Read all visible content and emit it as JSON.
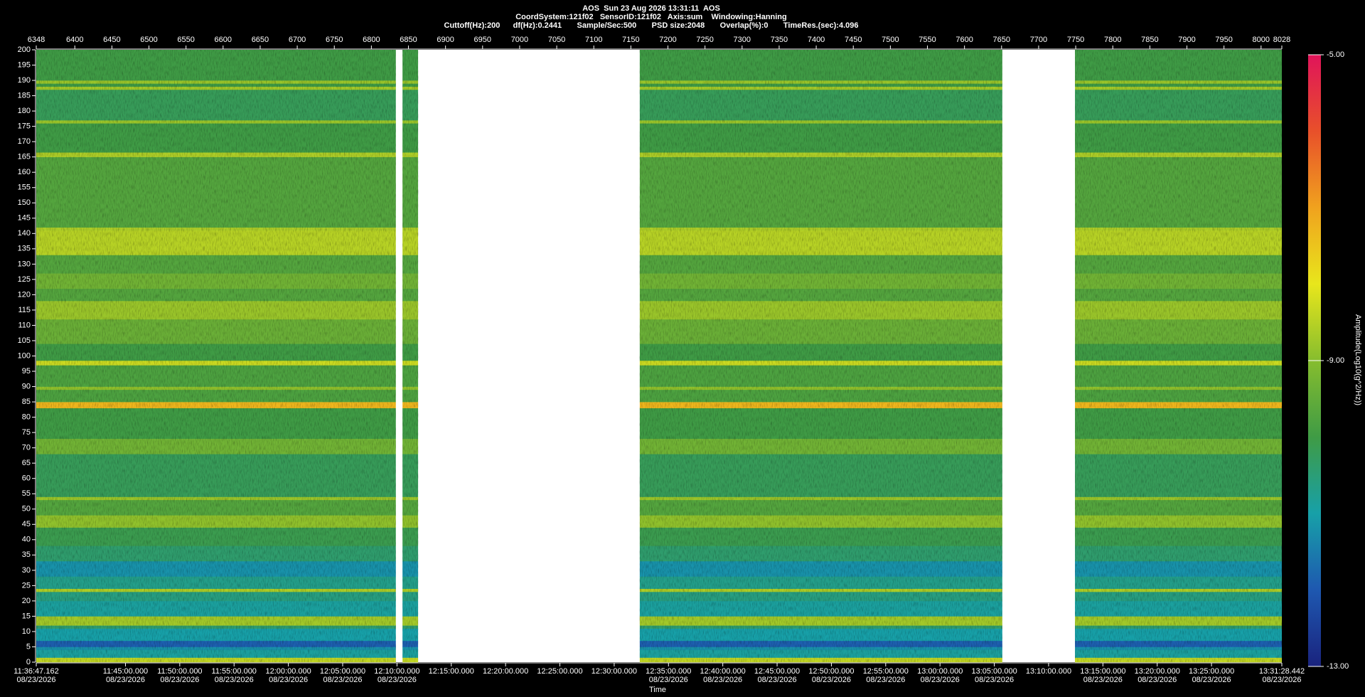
{
  "chart_data": {
    "type": "spectrogram",
    "title": "AOS  Sun 23 Aug 2026 13:31:11  AOS",
    "subtitle": "CoordSystem:121f02   SensorID:121f02   Axis:sum    Windowing:Hanning",
    "settings_line": "Cuttoff(Hz):200      df(Hz):0.2441       Sample/Sec:500       PSD size:2048       Overlap(%):0       TimeRes.(sec):4.096",
    "xlabel": "Time",
    "colorbar_label": "Amplitude(Log10(g^2/Hz))",
    "xlim": [
      6348,
      8028
    ],
    "xticks": [
      6348,
      6400,
      6450,
      6500,
      6550,
      6600,
      6650,
      6700,
      6750,
      6800,
      6850,
      6900,
      6950,
      7000,
      7050,
      7100,
      7150,
      7200,
      7250,
      7300,
      7350,
      7400,
      7450,
      7500,
      7550,
      7600,
      7650,
      7700,
      7750,
      7800,
      7850,
      7900,
      7950,
      8000,
      8028
    ],
    "timelim": [
      41807.162,
      48688.442
    ],
    "timeticks": [
      {
        "value": 41807.162,
        "label": "11:36:47.162",
        "date": "08/23/2026"
      },
      {
        "value": 42300,
        "label": "11:45:00.000",
        "date": "08/23/2026"
      },
      {
        "value": 42600,
        "label": "11:50:00.000",
        "date": "08/23/2026"
      },
      {
        "value": 42900,
        "label": "11:55:00.000",
        "date": "08/23/2026"
      },
      {
        "value": 43200,
        "label": "12:00:00.000",
        "date": "08/23/2026"
      },
      {
        "value": 43500,
        "label": "12:05:00.000",
        "date": "08/23/2026"
      },
      {
        "value": 43800,
        "label": "12:10:00.000",
        "date": "08/23/2026"
      },
      {
        "value": 44100,
        "label": "12:15:00.000"
      },
      {
        "value": 44400,
        "label": "12:20:00.000"
      },
      {
        "value": 44700,
        "label": "12:25:00.000"
      },
      {
        "value": 45000,
        "label": "12:30:00.000"
      },
      {
        "value": 45300,
        "label": "12:35:00.000",
        "date": "08/23/2026"
      },
      {
        "value": 45600,
        "label": "12:40:00.000",
        "date": "08/23/2026"
      },
      {
        "value": 45900,
        "label": "12:45:00.000",
        "date": "08/23/2026"
      },
      {
        "value": 46200,
        "label": "12:50:00.000",
        "date": "08/23/2026"
      },
      {
        "value": 46500,
        "label": "12:55:00.000",
        "date": "08/23/2026"
      },
      {
        "value": 46800,
        "label": "13:00:00.000",
        "date": "08/23/2026"
      },
      {
        "value": 47100,
        "label": "13:05:00.000",
        "date": "08/23/2026"
      },
      {
        "value": 47400,
        "label": "13:10:00.000"
      },
      {
        "value": 47700,
        "label": "13:15:00.000",
        "date": "08/23/2026"
      },
      {
        "value": 48000,
        "label": "13:20:00.000",
        "date": "08/23/2026"
      },
      {
        "value": 48300,
        "label": "13:25:00.000",
        "date": "08/23/2026"
      },
      {
        "value": 48688.442,
        "label": "13:31:28.442",
        "date": "08/23/2026"
      }
    ],
    "ylim": [
      0,
      200
    ],
    "yticks": [
      0,
      5,
      10,
      15,
      20,
      25,
      30,
      35,
      40,
      45,
      50,
      55,
      60,
      65,
      70,
      75,
      80,
      85,
      90,
      95,
      100,
      105,
      110,
      115,
      120,
      125,
      130,
      135,
      140,
      145,
      150,
      155,
      160,
      165,
      170,
      175,
      180,
      185,
      190,
      195,
      200
    ],
    "clim": [
      -13,
      -5
    ],
    "cticks": [
      {
        "value": -5,
        "label": "-5.00"
      },
      {
        "value": -9,
        "label": "-9.00"
      },
      {
        "value": -13,
        "label": "-13.00"
      }
    ],
    "colormap": [
      "#1a237e",
      "#1e58b0",
      "#17a0a8",
      "#3f9b45",
      "#86bd2e",
      "#e8e61c",
      "#f0a21e",
      "#e8502a",
      "#e0145a"
    ],
    "segments": [
      [
        6348,
        6833
      ],
      [
        6842,
        6863
      ],
      [
        7162,
        7651
      ],
      [
        7749,
        8028
      ]
    ],
    "bands": [
      {
        "from": 0,
        "to": 1.5,
        "amplitude": -8.4
      },
      {
        "from": 1.5,
        "to": 4,
        "amplitude": -10.9
      },
      {
        "from": 4,
        "to": 5,
        "amplitude": -11.2
      },
      {
        "from": 5,
        "to": 7,
        "amplitude": -11.9
      },
      {
        "from": 7,
        "to": 11,
        "amplitude": -11
      },
      {
        "from": 11,
        "to": 12,
        "amplitude": -10.4
      },
      {
        "from": 12,
        "to": 15,
        "amplitude": -8.7
      },
      {
        "from": 15,
        "to": 20,
        "amplitude": -10.9
      },
      {
        "from": 20,
        "to": 23,
        "amplitude": -10.6
      },
      {
        "from": 23,
        "to": 24,
        "amplitude": -8.6
      },
      {
        "from": 24,
        "to": 28,
        "amplitude": -10.7
      },
      {
        "from": 28,
        "to": 33,
        "amplitude": -11.2
      },
      {
        "from": 33,
        "to": 38,
        "amplitude": -10.4
      },
      {
        "from": 38,
        "to": 44,
        "amplitude": -10.1
      },
      {
        "from": 44,
        "to": 48,
        "amplitude": -8.9
      },
      {
        "from": 48,
        "to": 53,
        "amplitude": -9.7
      },
      {
        "from": 53,
        "to": 54,
        "amplitude": -8.8
      },
      {
        "from": 54,
        "to": 68,
        "amplitude": -10.2
      },
      {
        "from": 68,
        "to": 73,
        "amplitude": -9.3
      },
      {
        "from": 73,
        "to": 83,
        "amplitude": -10
      },
      {
        "from": 83,
        "to": 85,
        "amplitude": -7.3
      },
      {
        "from": 85,
        "to": 89,
        "amplitude": -9.8
      },
      {
        "from": 89,
        "to": 90,
        "amplitude": -8.9
      },
      {
        "from": 90,
        "to": 97,
        "amplitude": -9.8
      },
      {
        "from": 97,
        "to": 98.5,
        "amplitude": -8.3
      },
      {
        "from": 98.5,
        "to": 104,
        "amplitude": -10
      },
      {
        "from": 104,
        "to": 112,
        "amplitude": -9.4
      },
      {
        "from": 112,
        "to": 118,
        "amplitude": -8.8
      },
      {
        "from": 118,
        "to": 122,
        "amplitude": -9.7
      },
      {
        "from": 122,
        "to": 127,
        "amplitude": -9.3
      },
      {
        "from": 127,
        "to": 133,
        "amplitude": -9.7
      },
      {
        "from": 133,
        "to": 141,
        "amplitude": -8.5
      },
      {
        "from": 141,
        "to": 142,
        "amplitude": -8.6
      },
      {
        "from": 142,
        "to": 165,
        "amplitude": -9.7
      },
      {
        "from": 165,
        "to": 166.5,
        "amplitude": -8.6
      },
      {
        "from": 166.5,
        "to": 176,
        "amplitude": -10
      },
      {
        "from": 176,
        "to": 177,
        "amplitude": -8.8
      },
      {
        "from": 177,
        "to": 187,
        "amplitude": -10.2
      },
      {
        "from": 187,
        "to": 188,
        "amplitude": -8.7
      },
      {
        "from": 188,
        "to": 189,
        "amplitude": -10
      },
      {
        "from": 189,
        "to": 190,
        "amplitude": -8.8
      },
      {
        "from": 190,
        "to": 200,
        "amplitude": -10
      }
    ]
  }
}
